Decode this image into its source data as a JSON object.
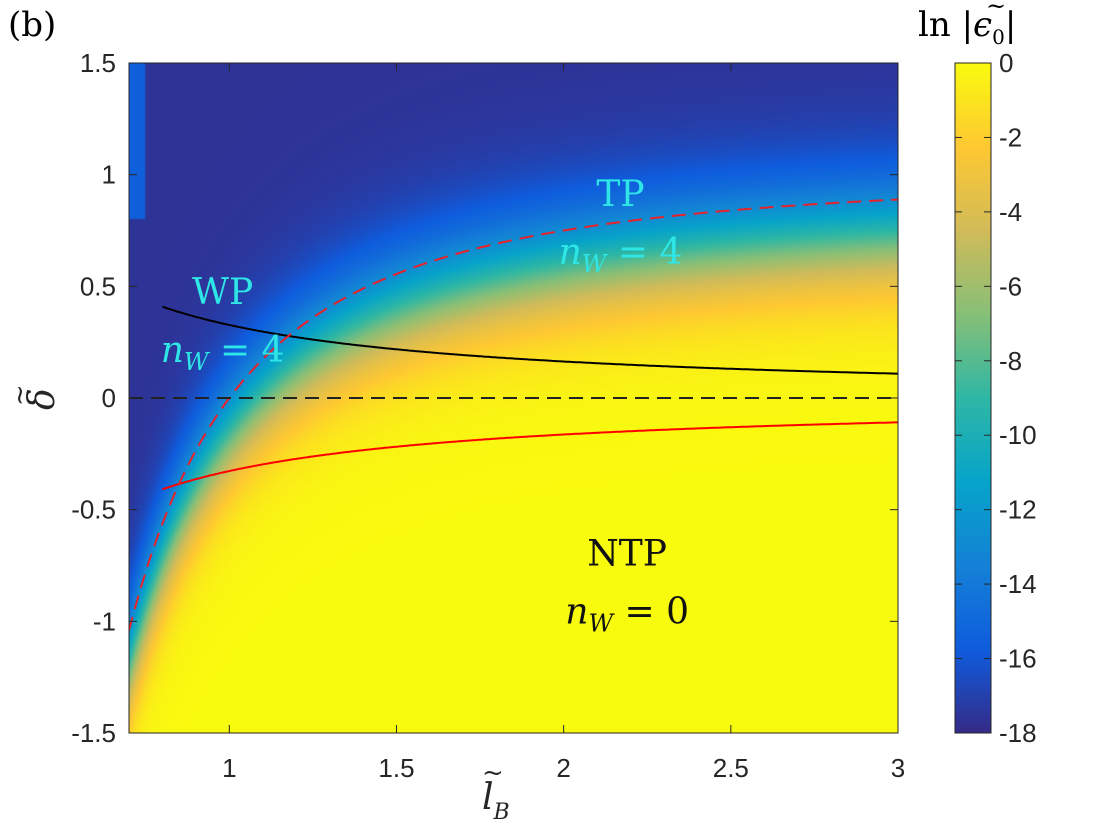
{
  "panel_label": "(b)",
  "chart_data": {
    "type": "heatmap",
    "x_range": [
      0.7,
      3
    ],
    "y_range": [
      -1.5,
      1.5
    ],
    "x_ticks": [
      "1",
      "1.5",
      "2",
      "2.5",
      "3"
    ],
    "x_tick_values": [
      1,
      1.5,
      2,
      2.5,
      3
    ],
    "y_ticks": [
      "1.5",
      "1",
      "0.5",
      "0",
      "-0.5",
      "-1",
      "-1.5"
    ],
    "y_tick_values": [
      1.5,
      1,
      0.5,
      0,
      -0.5,
      -1,
      -1.5
    ],
    "xlabel": {
      "base": "l",
      "accent": "~",
      "sub": "B"
    },
    "ylabel": {
      "base": "δ",
      "accent": "~"
    },
    "colorbar": {
      "title": {
        "prefix": "ln |",
        "base": "ϵ",
        "accent": "~",
        "sub": "0",
        "suffix": "|"
      },
      "range": [
        -18,
        0
      ],
      "ticks": [
        "0",
        "-2",
        "-4",
        "-6",
        "-8",
        "-10",
        "-12",
        "-14",
        "-16",
        "-18"
      ],
      "tick_values": [
        0,
        -2,
        -4,
        -6,
        -8,
        -10,
        -12,
        -14,
        -16,
        -18
      ],
      "colormap": "parula"
    },
    "curves": [
      {
        "style": "solid",
        "color": "#000000",
        "relation": "delta = 0.327 / l_B",
        "x_start": 0.8,
        "x_end": 3
      },
      {
        "style": "solid",
        "color": "#ff0000",
        "relation": "delta = -0.327 / l_B",
        "x_start": 0.8,
        "x_end": 3
      },
      {
        "style": "dashed",
        "color": "#e8212a",
        "relation": "delta = 1 - 1 / l_B^2",
        "x_start": 0.7,
        "x_end": 3
      },
      {
        "style": "dashed",
        "color": "#222222",
        "relation": "delta = 0",
        "x_start": 0.7,
        "x_end": 3
      }
    ],
    "annotations": [
      {
        "text": "TP",
        "nw": "n",
        "nw_sub": "W",
        "nw_eq": " = 4",
        "color": "#2ee6e6",
        "x": 2.17,
        "y": 0.86
      },
      {
        "text": "WP",
        "nw": "n",
        "nw_sub": "W",
        "nw_eq": " = 4",
        "color": "#2ee6e6",
        "x": 0.98,
        "y": 0.42
      },
      {
        "text": "NTP",
        "nw": "n",
        "nw_sub": "W",
        "nw_eq": " = 0",
        "color": "#111111",
        "x": 2.19,
        "y": -0.75
      }
    ]
  }
}
